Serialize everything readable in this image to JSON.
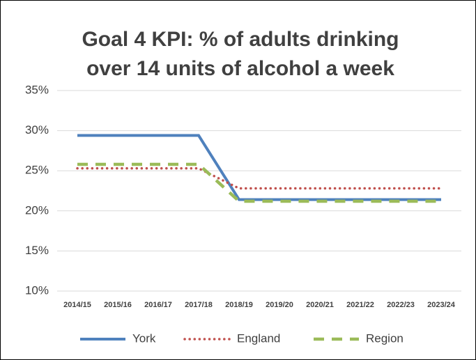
{
  "chart_data": {
    "type": "line",
    "title": [
      "Goal 4 KPI: % of adults drinking",
      "over 14 units of alcohol a week"
    ],
    "categories": [
      "2014/15",
      "2015/16",
      "2016/17",
      "2017/18",
      "2018/19",
      "2019/20",
      "2020/21",
      "2021/22",
      "2022/23",
      "2023/24"
    ],
    "series": [
      {
        "name": "York",
        "color": "#4f81bd",
        "style": "solid",
        "values": [
          29.4,
          29.4,
          29.4,
          29.4,
          21.4,
          21.4,
          21.4,
          21.4,
          21.4,
          21.4
        ]
      },
      {
        "name": "England",
        "color": "#c0504d",
        "style": "dotted",
        "values": [
          25.3,
          25.3,
          25.3,
          25.3,
          22.8,
          22.8,
          22.8,
          22.8,
          22.8,
          22.8
        ]
      },
      {
        "name": "Region",
        "color": "#9bbb59",
        "style": "dashed",
        "values": [
          25.8,
          25.8,
          25.8,
          25.8,
          21.2,
          21.2,
          21.2,
          21.2,
          21.2,
          21.2
        ]
      }
    ],
    "ylim": [
      10,
      35
    ],
    "yticks": [
      {
        "value": 10,
        "label": "10%"
      },
      {
        "value": 15,
        "label": "15%"
      },
      {
        "value": 20,
        "label": "20%"
      },
      {
        "value": 25,
        "label": "25%"
      },
      {
        "value": 30,
        "label": "30%"
      },
      {
        "value": 35,
        "label": "35%"
      }
    ],
    "grid": true,
    "legend": "bottom"
  }
}
